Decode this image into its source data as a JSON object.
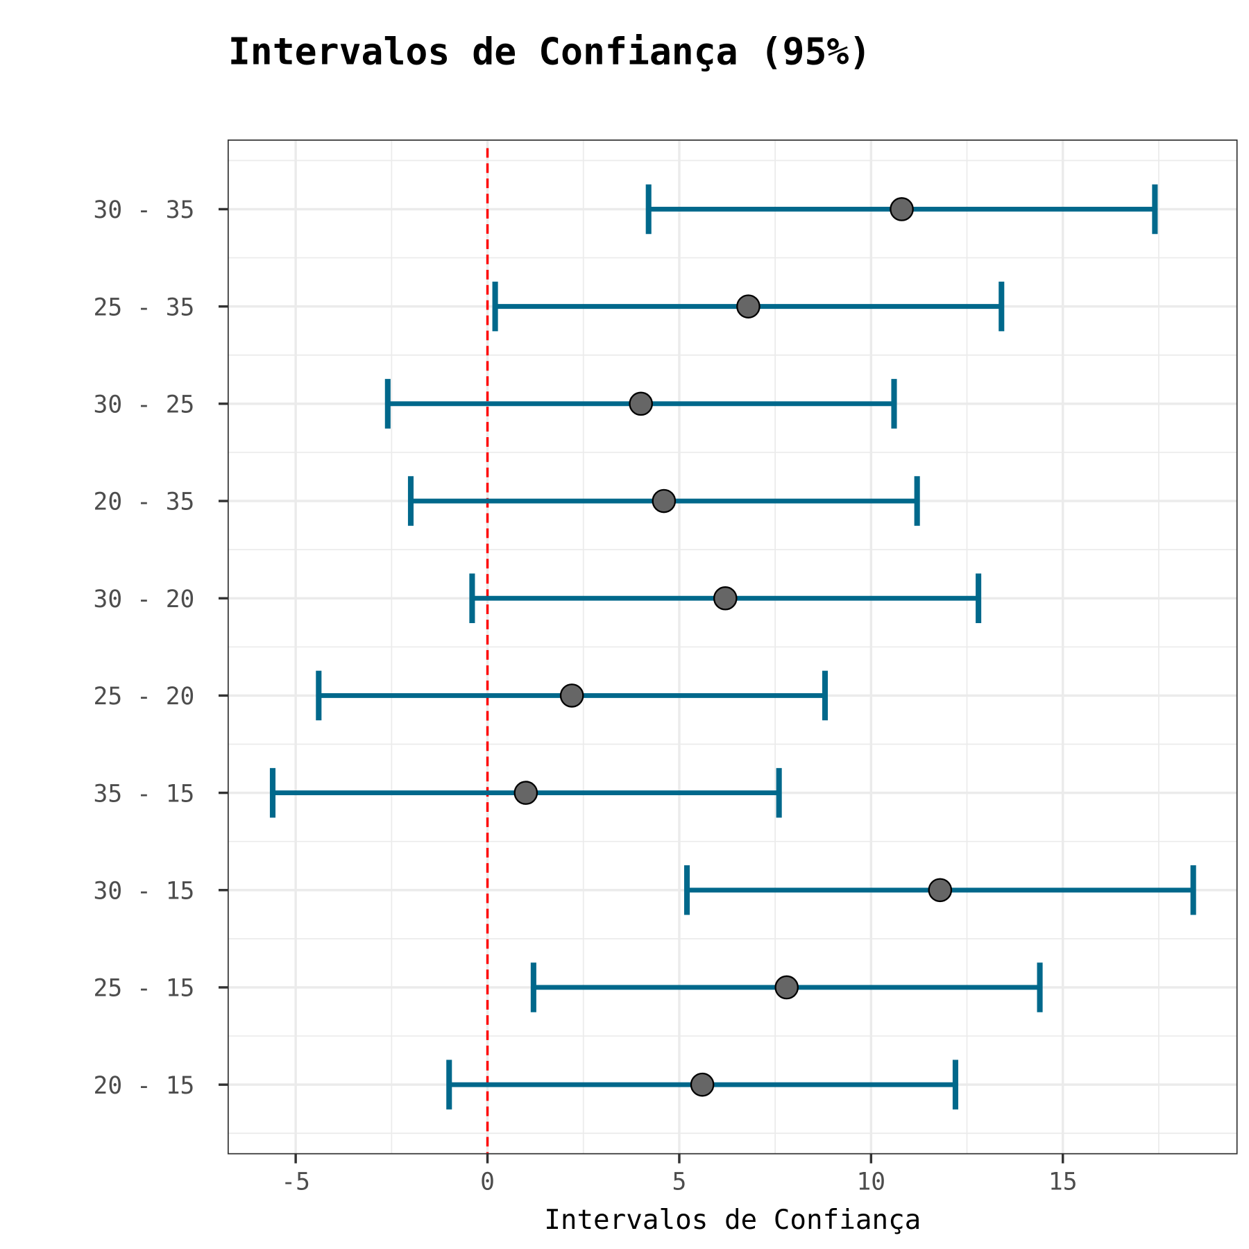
{
  "chart_data": {
    "type": "errorbar",
    "title": "Intervalos de Confiança (95%)",
    "xlabel": "Intervalos de Confiança",
    "ylabel": "",
    "xlim": [
      -6.76,
      19.54
    ],
    "xticks": [
      -5,
      0,
      5,
      10,
      15
    ],
    "xtick_labels": [
      "-5",
      "0",
      "5",
      "10",
      "15"
    ],
    "reference_line": {
      "x": 0,
      "style": "dashed",
      "color": "#ff0000"
    },
    "grid": true,
    "categories": [
      "20 - 15",
      "25 - 15",
      "30 - 15",
      "35 - 15",
      "25 - 20",
      "30 - 20",
      "20 - 35",
      "30 - 25",
      "25 - 35",
      "30 - 35"
    ],
    "estimate": [
      5.6,
      7.8,
      11.8,
      1.0,
      2.2,
      6.2,
      4.6,
      4.0,
      6.8,
      10.8
    ],
    "lower": [
      -1.0,
      1.2,
      5.2,
      -5.6,
      -4.4,
      -0.4,
      -2.0,
      -2.6,
      0.2,
      4.2
    ],
    "upper": [
      12.2,
      14.4,
      18.4,
      7.6,
      8.8,
      12.8,
      11.2,
      10.6,
      13.4,
      17.4
    ],
    "colors": {
      "errorbar": "#00688b",
      "point": "#666666",
      "point_edge": "#000000"
    }
  }
}
